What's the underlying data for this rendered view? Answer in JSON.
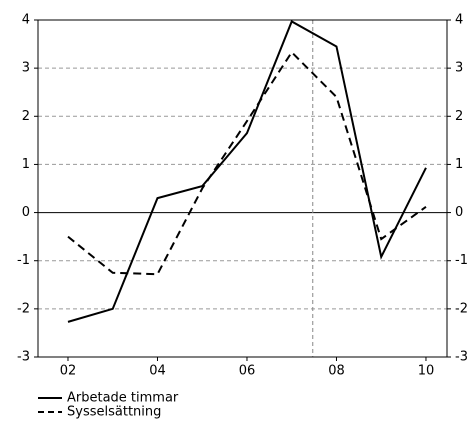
{
  "chart_data": {
    "type": "line",
    "x": [
      2002,
      2003,
      2004,
      2005,
      2006,
      2007,
      2008,
      2009,
      2010
    ],
    "series": [
      {
        "name": "Arbetade timmar",
        "color": "#000000",
        "dash": "solid",
        "values": [
          -2.27,
          -2.0,
          0.3,
          0.55,
          1.65,
          3.97,
          3.45,
          -0.92,
          0.93
        ]
      },
      {
        "name": "Sysselsättning",
        "color": "#000000",
        "dash": "dashed",
        "values": [
          -0.5,
          -1.25,
          -1.28,
          0.5,
          1.9,
          3.33,
          2.4,
          -0.55,
          0.12
        ]
      }
    ],
    "xlim": [
      2001.33,
      2010.47
    ],
    "xticks": [
      {
        "value": 2002,
        "label": "02"
      },
      {
        "value": 2004,
        "label": "04"
      },
      {
        "value": 2006,
        "label": "06"
      },
      {
        "value": 2008,
        "label": "08"
      },
      {
        "value": 2010,
        "label": "10"
      }
    ],
    "ylim": [
      -3,
      4
    ],
    "yticks": [
      -3,
      -2,
      -1,
      0,
      1,
      2,
      3,
      4
    ],
    "vline": 2007.47,
    "grid": true,
    "legend": "bottom-left"
  }
}
